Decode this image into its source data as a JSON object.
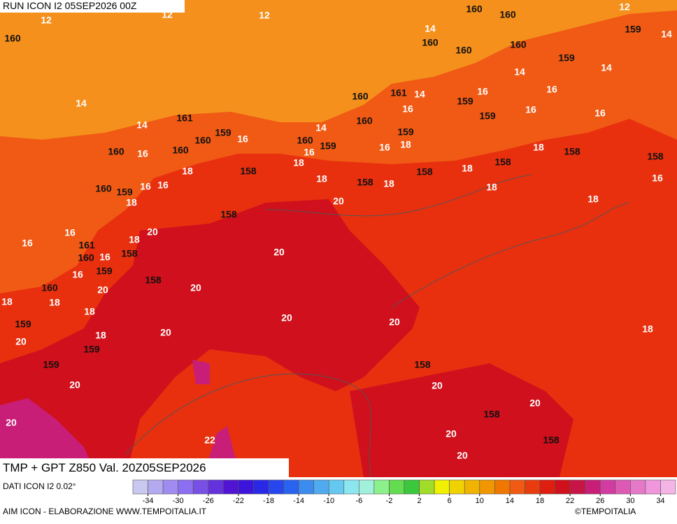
{
  "header": {
    "run": "RUN ICON I2 05SEP2026 00Z"
  },
  "map": {
    "temperature_labels": [
      "12",
      "12",
      "12",
      "12",
      "14",
      "14",
      "14",
      "14",
      "14",
      "14",
      "14",
      "14",
      "16",
      "16",
      "16",
      "16",
      "16",
      "16",
      "16",
      "16",
      "16",
      "16",
      "16",
      "16",
      "16",
      "16",
      "16",
      "16",
      "18",
      "18",
      "18",
      "18",
      "18",
      "18",
      "18",
      "18",
      "18",
      "18",
      "18",
      "18",
      "18",
      "18",
      "18",
      "18",
      "20",
      "20",
      "20",
      "20",
      "20",
      "20",
      "20",
      "20",
      "20",
      "20",
      "20",
      "20",
      "20",
      "20",
      "20",
      "22",
      "22"
    ],
    "geopotential_labels": [
      "160",
      "160",
      "160",
      "160",
      "160",
      "160",
      "159",
      "159",
      "161",
      "160",
      "159",
      "159",
      "160",
      "161",
      "159",
      "160",
      "160",
      "159",
      "159",
      "160",
      "160",
      "158",
      "158",
      "158",
      "158",
      "158",
      "158",
      "160",
      "159",
      "158",
      "161",
      "160",
      "158",
      "159",
      "158",
      "160",
      "159",
      "159",
      "159",
      "158",
      "158",
      "158"
    ]
  },
  "footer": {
    "title": "TMP + GPT Z850 Val. 20Z05SEP2026",
    "source": "DATI ICON I2 0.02°",
    "credit": "AIM ICON - ELABORAZIONE WWW.TEMPOITALIA.IT",
    "copyright": "©TEMPOITALIA"
  },
  "colorbar": {
    "range": [
      -36,
      36
    ],
    "ticks": [
      -34,
      -30,
      -26,
      -22,
      -18,
      -14,
      -10,
      -6,
      -2,
      2,
      6,
      10,
      14,
      18,
      22,
      26,
      30,
      34
    ],
    "colors": [
      "#c8c8f0",
      "#b4aaf0",
      "#a08cf0",
      "#8c6ef0",
      "#7850e6",
      "#6432dc",
      "#5014d2",
      "#3c14dc",
      "#2828e6",
      "#2846f0",
      "#2864f0",
      "#3c8cf0",
      "#50aaf0",
      "#64c8f0",
      "#8ce6f0",
      "#a0f0dc",
      "#8cf08c",
      "#64dc50",
      "#3cc83c",
      "#a0dc28",
      "#f0f000",
      "#f0d200",
      "#f0b400",
      "#f09600",
      "#f07800",
      "#f05a14",
      "#e83c0f",
      "#e01e0f",
      "#d0101c",
      "#c81446",
      "#c81e78",
      "#d23ca0",
      "#dc5ab4",
      "#e678c8",
      "#f096dc",
      "#f5b4e6"
    ]
  }
}
